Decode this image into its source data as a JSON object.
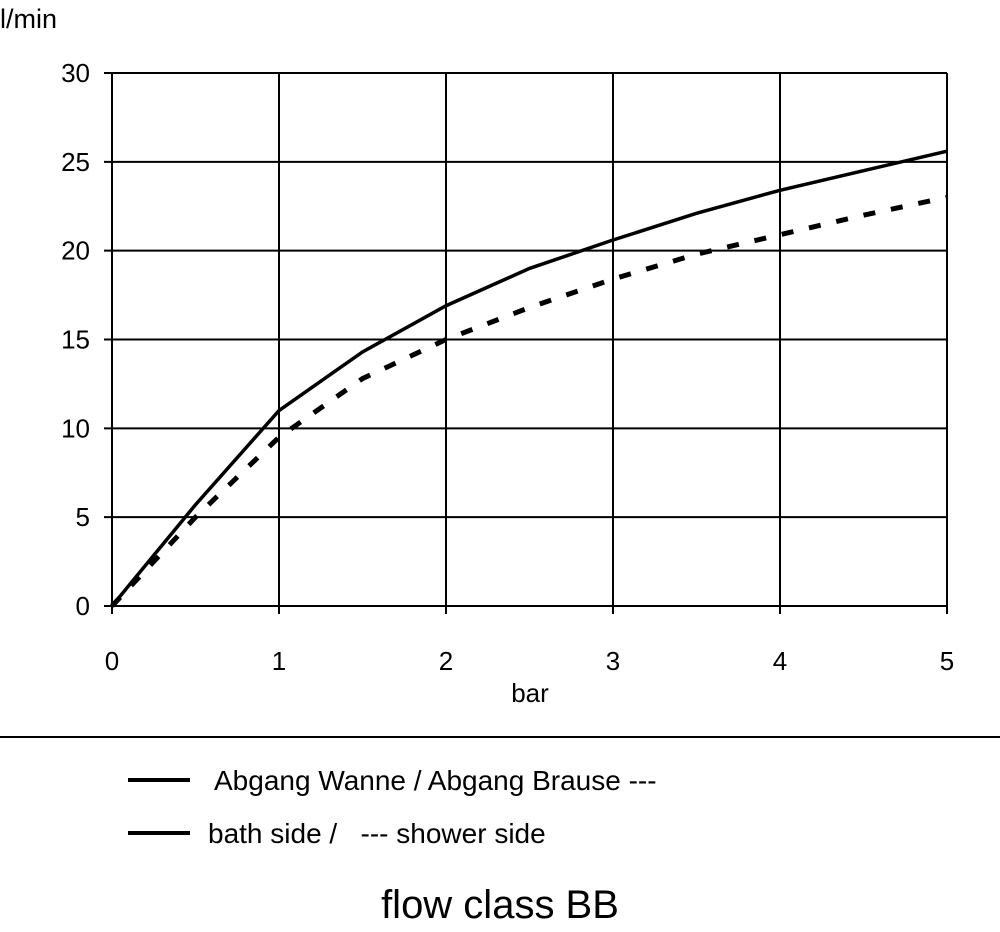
{
  "chart_data": {
    "type": "line",
    "title": "flow class BB",
    "y_label": "l/min",
    "x_label": "bar",
    "x": [
      0,
      0.5,
      1,
      1.5,
      2,
      2.5,
      3,
      3.5,
      4,
      4.5,
      5
    ],
    "series": [
      {
        "color": "#000000",
        "dash": false,
        "values": [
          0,
          5.7,
          11,
          14.3,
          16.9,
          19,
          20.6,
          22.1,
          23.4,
          24.5,
          25.6
        ]
      },
      {
        "color": "#000000",
        "dash": true,
        "values": [
          0,
          5,
          9.5,
          12.8,
          15,
          16.8,
          18.4,
          19.8,
          20.9,
          22,
          23
        ]
      }
    ],
    "legend": [
      "Abgang Wanne / Abgang Brause ---",
      "bath side /   --- shower side"
    ],
    "xlim": [
      0,
      5
    ],
    "xticks": [
      0,
      1,
      2,
      3,
      4,
      5
    ],
    "ylim": [
      0,
      30
    ],
    "yticks": [
      0,
      5,
      10,
      15,
      20,
      25,
      30
    ],
    "grid": true
  }
}
